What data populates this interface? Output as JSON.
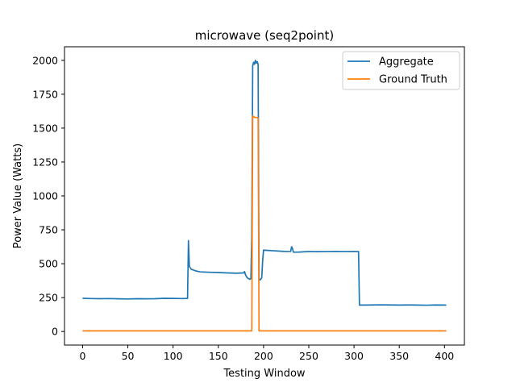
{
  "chart_data": {
    "type": "line",
    "title": "microwave (seq2point)",
    "xlabel": "Testing Window",
    "ylabel": "Power Value (Watts)",
    "xlim": [
      -20,
      422
    ],
    "ylim": [
      -100,
      2100
    ],
    "xticks": [
      0,
      50,
      100,
      150,
      200,
      250,
      300,
      350,
      400
    ],
    "yticks": [
      0,
      250,
      500,
      750,
      1000,
      1250,
      1500,
      1750,
      2000
    ],
    "grid": false,
    "legend_position": "top-right",
    "series": [
      {
        "name": "Aggregate",
        "color": "#1f77b4",
        "points": [
          [
            0,
            245
          ],
          [
            10,
            243
          ],
          [
            20,
            242
          ],
          [
            30,
            243
          ],
          [
            40,
            241
          ],
          [
            50,
            240
          ],
          [
            60,
            242
          ],
          [
            70,
            241
          ],
          [
            80,
            242
          ],
          [
            90,
            245
          ],
          [
            100,
            244
          ],
          [
            110,
            243
          ],
          [
            116,
            244
          ],
          [
            117,
            670
          ],
          [
            118,
            480
          ],
          [
            120,
            460
          ],
          [
            125,
            447
          ],
          [
            130,
            440
          ],
          [
            140,
            437
          ],
          [
            150,
            435
          ],
          [
            160,
            432
          ],
          [
            170,
            430
          ],
          [
            178,
            432
          ],
          [
            179,
            442
          ],
          [
            180,
            420
          ],
          [
            182,
            395
          ],
          [
            185,
            385
          ],
          [
            186,
            390
          ],
          [
            187,
            700
          ],
          [
            188,
            1960
          ],
          [
            189,
            1985
          ],
          [
            190,
            1970
          ],
          [
            191,
            2000
          ],
          [
            192,
            1980
          ],
          [
            193,
            1990
          ],
          [
            194,
            1970
          ],
          [
            195,
            390
          ],
          [
            196,
            380
          ],
          [
            198,
            395
          ],
          [
            199,
            520
          ],
          [
            200,
            600
          ],
          [
            205,
            598
          ],
          [
            210,
            596
          ],
          [
            220,
            592
          ],
          [
            225,
            590
          ],
          [
            230,
            591
          ],
          [
            231,
            625
          ],
          [
            232,
            612
          ],
          [
            233,
            585
          ],
          [
            240,
            586
          ],
          [
            250,
            590
          ],
          [
            260,
            589
          ],
          [
            270,
            590
          ],
          [
            280,
            591
          ],
          [
            290,
            590
          ],
          [
            300,
            591
          ],
          [
            305,
            590
          ],
          [
            306,
            195
          ],
          [
            310,
            195
          ],
          [
            320,
            196
          ],
          [
            330,
            197
          ],
          [
            340,
            196
          ],
          [
            350,
            195
          ],
          [
            360,
            196
          ],
          [
            370,
            195
          ],
          [
            380,
            194
          ],
          [
            390,
            196
          ],
          [
            400,
            195
          ],
          [
            402,
            194
          ]
        ]
      },
      {
        "name": "Ground Truth",
        "color": "#ff7f0e",
        "points": [
          [
            0,
            5
          ],
          [
            186,
            5
          ],
          [
            187,
            5
          ],
          [
            188,
            1590
          ],
          [
            190,
            1580
          ],
          [
            193,
            1578
          ],
          [
            194,
            1575
          ],
          [
            195,
            5
          ],
          [
            200,
            5
          ],
          [
            300,
            5
          ],
          [
            402,
            5
          ]
        ]
      }
    ]
  }
}
